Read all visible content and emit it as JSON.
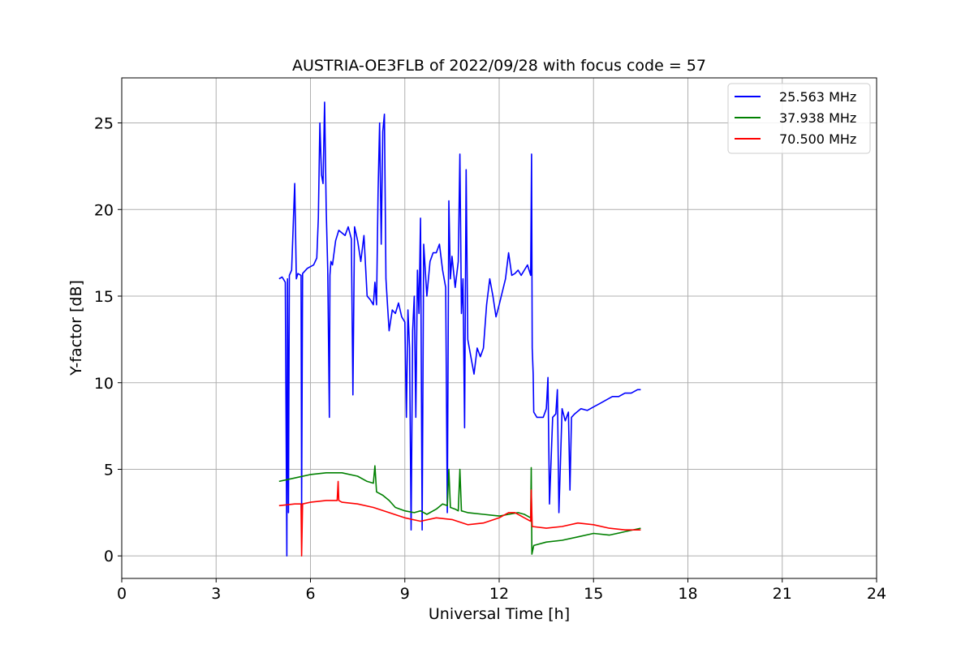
{
  "chart_data": {
    "type": "line",
    "title": "AUSTRIA-OE3FLB of 2022/09/28 with focus code = 57",
    "xlabel": "Universal Time [h]",
    "ylabel": "Y-factor [dB]",
    "xlim": [
      0,
      24
    ],
    "ylim": [
      -1.3,
      27.6
    ],
    "xticks": [
      0,
      3,
      6,
      9,
      12,
      15,
      18,
      21,
      24
    ],
    "yticks": [
      0,
      5,
      10,
      15,
      20,
      25
    ],
    "grid": true,
    "legend_position": "top-right",
    "series": [
      {
        "name": "25.563 MHz",
        "color": "#0000ff",
        "x": [
          5.0,
          5.1,
          5.2,
          5.25,
          5.27,
          5.3,
          5.33,
          5.4,
          5.45,
          5.5,
          5.55,
          5.6,
          5.7,
          5.72,
          5.75,
          5.9,
          6.1,
          6.2,
          6.25,
          6.3,
          6.35,
          6.4,
          6.45,
          6.5,
          6.55,
          6.6,
          6.62,
          6.65,
          6.7,
          6.8,
          6.9,
          7.1,
          7.2,
          7.3,
          7.35,
          7.4,
          7.5,
          7.6,
          7.7,
          7.8,
          7.9,
          8.0,
          8.05,
          8.1,
          8.15,
          8.2,
          8.25,
          8.3,
          8.35,
          8.4,
          8.45,
          8.5,
          8.6,
          8.7,
          8.8,
          8.9,
          9.0,
          9.05,
          9.1,
          9.15,
          9.2,
          9.25,
          9.3,
          9.35,
          9.4,
          9.45,
          9.5,
          9.55,
          9.6,
          9.7,
          9.8,
          9.9,
          10.0,
          10.1,
          10.2,
          10.3,
          10.35,
          10.4,
          10.45,
          10.5,
          10.6,
          10.7,
          10.75,
          10.8,
          10.85,
          10.9,
          10.95,
          11.0,
          11.1,
          11.2,
          11.3,
          11.4,
          11.5,
          11.6,
          11.7,
          11.8,
          11.9,
          12.0,
          12.2,
          12.3,
          12.4,
          12.5,
          12.6,
          12.7,
          12.8,
          12.9,
          13.0,
          13.03,
          13.05,
          13.08,
          13.1,
          13.2,
          13.4,
          13.5,
          13.55,
          13.6,
          13.7,
          13.8,
          13.85,
          13.9,
          14.0,
          14.1,
          14.2,
          14.25,
          14.3,
          14.4,
          14.6,
          14.8,
          15.0,
          15.2,
          15.4,
          15.6,
          15.8,
          16.0,
          16.2,
          16.4,
          16.5
        ],
        "y": [
          16.0,
          16.1,
          15.8,
          0.0,
          16.0,
          2.5,
          16.2,
          16.5,
          19.0,
          21.5,
          16.0,
          16.3,
          16.2,
          2.5,
          16.3,
          16.6,
          16.8,
          17.2,
          19.5,
          25.0,
          22.0,
          21.5,
          26.2,
          20.0,
          16.5,
          8.0,
          16.2,
          17.0,
          16.8,
          18.2,
          18.8,
          18.5,
          19.0,
          18.3,
          9.3,
          19.0,
          18.2,
          17.0,
          18.5,
          15.0,
          14.8,
          14.5,
          15.8,
          14.5,
          21.0,
          25.0,
          18.0,
          24.5,
          25.5,
          16.0,
          14.5,
          13.0,
          14.2,
          14.0,
          14.6,
          13.8,
          13.5,
          8.0,
          14.2,
          12.0,
          1.5,
          13.0,
          15.0,
          8.0,
          16.5,
          14.0,
          19.5,
          1.5,
          18.0,
          15.0,
          17.0,
          17.5,
          17.5,
          18.0,
          16.5,
          15.5,
          2.5,
          20.5,
          16.0,
          17.3,
          15.5,
          17.0,
          23.2,
          14.0,
          16.0,
          7.4,
          22.3,
          12.5,
          11.5,
          10.5,
          12.0,
          11.5,
          12.0,
          14.5,
          16.0,
          15.0,
          13.8,
          14.5,
          16.0,
          17.5,
          16.2,
          16.3,
          16.5,
          16.2,
          16.5,
          16.8,
          16.2,
          23.2,
          12.0,
          10.5,
          8.3,
          8.0,
          8.0,
          8.5,
          10.3,
          3.0,
          8.0,
          8.2,
          9.6,
          2.5,
          8.5,
          7.8,
          8.3,
          3.8,
          8.0,
          8.2,
          8.5,
          8.4,
          8.6,
          8.8,
          9.0,
          9.2,
          9.2,
          9.4,
          9.4,
          9.6,
          9.6
        ]
      },
      {
        "name": "37.938 MHz",
        "color": "#008000",
        "x": [
          5.0,
          5.5,
          6.0,
          6.5,
          7.0,
          7.5,
          7.8,
          8.0,
          8.05,
          8.1,
          8.3,
          8.5,
          8.7,
          9.0,
          9.3,
          9.5,
          9.7,
          10.0,
          10.2,
          10.35,
          10.4,
          10.45,
          10.6,
          10.7,
          10.75,
          10.8,
          11.0,
          11.5,
          12.0,
          12.3,
          12.6,
          12.8,
          13.0,
          13.02,
          13.04,
          13.1,
          13.5,
          14.0,
          14.5,
          15.0,
          15.5,
          16.0,
          16.5
        ],
        "y": [
          4.3,
          4.5,
          4.7,
          4.8,
          4.8,
          4.6,
          4.3,
          4.2,
          5.2,
          3.7,
          3.5,
          3.2,
          2.8,
          2.6,
          2.5,
          2.6,
          2.4,
          2.7,
          3.0,
          2.9,
          5.0,
          2.8,
          2.7,
          2.6,
          5.0,
          2.6,
          2.5,
          2.4,
          2.3,
          2.4,
          2.5,
          2.4,
          2.2,
          5.1,
          0.1,
          0.6,
          0.8,
          0.9,
          1.1,
          1.3,
          1.2,
          1.4,
          1.6
        ]
      },
      {
        "name": "70.500 MHz",
        "color": "#ff0000",
        "x": [
          5.0,
          5.5,
          5.7,
          5.72,
          5.75,
          6.0,
          6.5,
          6.85,
          6.88,
          6.9,
          7.0,
          7.5,
          8.0,
          8.5,
          9.0,
          9.5,
          10.0,
          10.5,
          11.0,
          11.5,
          12.0,
          12.3,
          12.5,
          12.8,
          13.0,
          13.02,
          13.05,
          13.5,
          14.0,
          14.5,
          15.0,
          15.5,
          16.0,
          16.5
        ],
        "y": [
          2.9,
          3.0,
          3.0,
          0.0,
          3.0,
          3.1,
          3.2,
          3.2,
          4.3,
          3.2,
          3.1,
          3.0,
          2.8,
          2.5,
          2.2,
          2.0,
          2.2,
          2.1,
          1.8,
          1.9,
          2.2,
          2.5,
          2.5,
          2.2,
          2.0,
          3.8,
          1.7,
          1.6,
          1.7,
          1.9,
          1.8,
          1.6,
          1.5,
          1.5
        ]
      }
    ]
  }
}
